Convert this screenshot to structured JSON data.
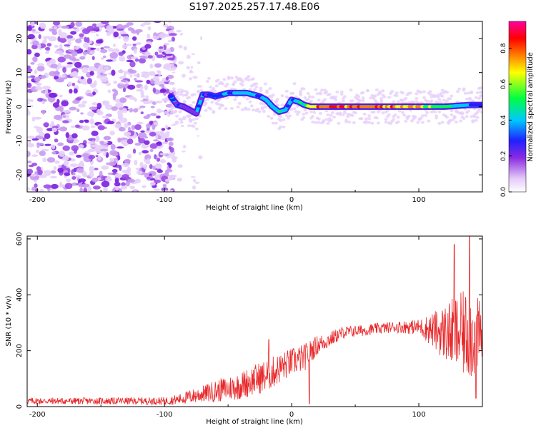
{
  "title": "S197.2025.257.17.48.E06",
  "chart_data": [
    {
      "type": "heatmap",
      "title": "S197.2025.257.17.48.E06",
      "xlabel": "Height of straight line (km)",
      "ylabel": "Frequency (Hz)",
      "xlim": [
        -208,
        150
      ],
      "ylim": [
        -25,
        25
      ],
      "x_ticks": [
        -200,
        -100,
        0,
        100
      ],
      "y_ticks": [
        -20,
        -10,
        0,
        10,
        20
      ],
      "colorbar": {
        "label": "Normalized spectral amplitude",
        "range": [
          0,
          0.95
        ],
        "ticks": [
          0.0,
          0.2,
          0.4,
          0.6,
          0.8
        ]
      },
      "ridge": {
        "description": "dominant frequency track vs height",
        "x": [
          -95,
          -90,
          -85,
          -80,
          -75,
          -70,
          -65,
          -60,
          -55,
          -50,
          -45,
          -40,
          -35,
          -30,
          -25,
          -20,
          -15,
          -10,
          -5,
          0,
          5,
          10,
          15,
          20,
          40,
          60,
          80,
          100,
          120,
          140,
          150
        ],
        "y": [
          3,
          0.5,
          0,
          -1,
          -2,
          3.5,
          3.5,
          3,
          3.5,
          4,
          4,
          4,
          4,
          3.5,
          3,
          2,
          0,
          -1.5,
          -1,
          2,
          1.5,
          0.5,
          0,
          0,
          0,
          0,
          0,
          0,
          0,
          0.5,
          0.5
        ],
        "amplitude": [
          0.35,
          0.3,
          0.3,
          0.25,
          0.3,
          0.3,
          0.35,
          0.35,
          0.4,
          0.45,
          0.45,
          0.5,
          0.5,
          0.45,
          0.4,
          0.45,
          0.5,
          0.6,
          0.4,
          0.45,
          0.5,
          0.6,
          0.75,
          0.9,
          0.9,
          0.9,
          0.85,
          0.8,
          0.6,
          0.45,
          0.4
        ]
      }
    },
    {
      "type": "line",
      "xlabel": "Height of straight line (km)",
      "ylabel": "SNR (10 * v/v)",
      "xlim": [
        -208,
        150
      ],
      "ylim": [
        0,
        610
      ],
      "x_ticks": [
        -200,
        -100,
        0,
        100
      ],
      "y_ticks": [
        0,
        200,
        400,
        600
      ],
      "color": "#e8282a",
      "series": [
        {
          "name": "SNR",
          "description": "noisy trace; envelope mean / amplitude per height",
          "x": [
            -208,
            -150,
            -100,
            -90,
            -80,
            -70,
            -60,
            -50,
            -40,
            -30,
            -20,
            -10,
            0,
            10,
            20,
            30,
            40,
            60,
            80,
            100,
            110,
            120,
            130,
            140,
            150
          ],
          "mean": [
            20,
            20,
            20,
            25,
            35,
            45,
            55,
            65,
            75,
            95,
            110,
            135,
            160,
            175,
            220,
            240,
            265,
            275,
            285,
            285,
            275,
            265,
            260,
            255,
            250
          ],
          "spread": [
            12,
            12,
            14,
            18,
            25,
            30,
            40,
            45,
            50,
            55,
            60,
            55,
            50,
            50,
            35,
            28,
            22,
            20,
            20,
            28,
            60,
            100,
            140,
            170,
            120
          ],
          "peaks": [
            {
              "x": -18,
              "y": 240
            },
            {
              "x": 14,
              "y": 10
            },
            {
              "x": 128,
              "y": 580
            },
            {
              "x": 140,
              "y": 610
            },
            {
              "x": 145,
              "y": 30
            }
          ]
        }
      ]
    }
  ]
}
